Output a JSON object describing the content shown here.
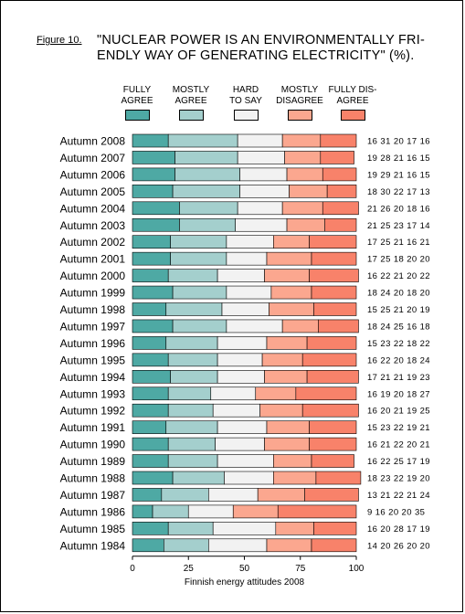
{
  "figure_label": "Figure 10.",
  "title_line1": "\"NUCLEAR POWER IS AN ENVIRONMENTALLY FRI-",
  "title_line2": "ENDLY WAY OF GENERATING ELECTRICITY\" (%).",
  "xlabel": "Finnish energy attitudes 2008",
  "legend": [
    {
      "label1": "FULLY",
      "label2": "AGREE",
      "color": "#4ea9a4"
    },
    {
      "label1": "MOSTLY",
      "label2": "AGREE",
      "color": "#a4cfcd"
    },
    {
      "label1": "HARD",
      "label2": "TO SAY",
      "color": "#f2f2f2"
    },
    {
      "label1": "MOSTLY",
      "label2": "DISAGREE",
      "color": "#fba78f"
    },
    {
      "label1": "FULLY DIS-",
      "label2": "AGREE",
      "color": "#f8826a"
    }
  ],
  "chart_data": {
    "type": "bar",
    "orientation": "horizontal",
    "stacked": true,
    "xlim": [
      0,
      100
    ],
    "xticks": [
      "0",
      "25",
      "50",
      "75",
      "100"
    ],
    "categories": [
      "Autumn 2008",
      "Autumn 2007",
      "Autumn 2006",
      "Autumn 2005",
      "Autumn 2004",
      "Autumn 2003",
      "Autumn 2002",
      "Autumn 2001",
      "Autumn 2000",
      "Autumn 1999",
      "Autumn 1998",
      "Autumn 1997",
      "Autumn 1996",
      "Autumn 1995",
      "Autumn 1994",
      "Autumn 1993",
      "Autumn 1992",
      "Autumn 1991",
      "Autumn 1990",
      "Autumn 1989",
      "Autumn 1988",
      "Autumn 1987",
      "Autumn 1986",
      "Autumn 1985",
      "Autumn 1984"
    ],
    "series": [
      {
        "name": "FULLY AGREE",
        "values": [
          16,
          19,
          19,
          18,
          21,
          21,
          17,
          17,
          16,
          18,
          15,
          18,
          15,
          16,
          17,
          16,
          16,
          15,
          16,
          16,
          18,
          13,
          9,
          16,
          14
        ]
      },
      {
        "name": "MOSTLY AGREE",
        "values": [
          31,
          28,
          29,
          30,
          26,
          25,
          25,
          25,
          22,
          24,
          25,
          24,
          23,
          22,
          21,
          19,
          20,
          23,
          21,
          22,
          23,
          21,
          16,
          20,
          20
        ]
      },
      {
        "name": "HARD TO SAY",
        "values": [
          20,
          21,
          21,
          22,
          20,
          23,
          21,
          18,
          21,
          20,
          21,
          25,
          22,
          20,
          21,
          20,
          21,
          22,
          22,
          25,
          22,
          22,
          20,
          28,
          26
        ]
      },
      {
        "name": "MOSTLY DISAGREE",
        "values": [
          17,
          16,
          16,
          17,
          18,
          17,
          16,
          20,
          20,
          18,
          20,
          16,
          18,
          18,
          19,
          18,
          19,
          19,
          20,
          17,
          19,
          21,
          20,
          17,
          20
        ]
      },
      {
        "name": "FULLY DISAGREE",
        "values": [
          16,
          15,
          15,
          13,
          16,
          14,
          21,
          20,
          22,
          20,
          19,
          18,
          22,
          24,
          23,
          27,
          25,
          21,
          21,
          19,
          20,
          24,
          35,
          19,
          20
        ]
      }
    ],
    "grid": false,
    "legend_position": "top"
  }
}
